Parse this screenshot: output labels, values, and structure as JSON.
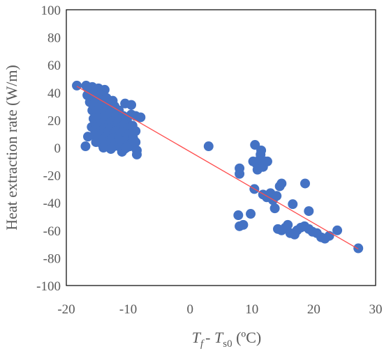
{
  "chart_data": {
    "type": "scatter",
    "xlabel": "Tf - Ts0 (ºC)",
    "xlabel_parts": {
      "t1": "T",
      "s1": "f",
      "mid": "- ",
      "t2": "T",
      "s2": "s0",
      "tail": " (ºC)"
    },
    "ylabel": "Heat extraction rate (W/m)",
    "xlim": [
      -20,
      30
    ],
    "ylim": [
      -100,
      100
    ],
    "xticks": [
      -20,
      -10,
      0,
      10,
      20,
      30
    ],
    "xtick_labels": [
      "-20",
      "-10",
      "0",
      "10",
      "20",
      "30"
    ],
    "yticks": [
      100,
      80,
      60,
      40,
      20,
      0,
      -20,
      -40,
      -60,
      -80,
      -100
    ],
    "ytick_labels": [
      "100",
      "80",
      "60",
      "40",
      "20",
      "0",
      "-20",
      "-40",
      "-60",
      "-80",
      "-100"
    ],
    "grid": false,
    "marker_color": "#4472C4",
    "trendline_color": "#FF4D4D",
    "trendline": [
      [
        -18.3,
        44.5
      ],
      [
        27.2,
        -73.5
      ]
    ],
    "points": [
      [
        -18.3,
        45
      ],
      [
        -16.8,
        45
      ],
      [
        -16.5,
        43
      ],
      [
        -15.8,
        44
      ],
      [
        -15.2,
        42
      ],
      [
        -14.8,
        43
      ],
      [
        -14.2,
        41
      ],
      [
        -13.8,
        42
      ],
      [
        -16.6,
        38
      ],
      [
        -16.0,
        36
      ],
      [
        -15.5,
        39
      ],
      [
        -15.0,
        37
      ],
      [
        -14.5,
        38
      ],
      [
        -14.0,
        35
      ],
      [
        -13.5,
        36
      ],
      [
        -12.5,
        34
      ],
      [
        -16.2,
        33
      ],
      [
        -15.7,
        31
      ],
      [
        -15.2,
        33
      ],
      [
        -14.7,
        30
      ],
      [
        -14.2,
        32
      ],
      [
        -13.7,
        29
      ],
      [
        -13.2,
        31
      ],
      [
        -12.7,
        28
      ],
      [
        -12.2,
        30
      ],
      [
        -11.5,
        27
      ],
      [
        -10.5,
        32
      ],
      [
        -9.5,
        31
      ],
      [
        -15.8,
        27
      ],
      [
        -15.3,
        25
      ],
      [
        -14.8,
        27
      ],
      [
        -14.3,
        24
      ],
      [
        -13.8,
        26
      ],
      [
        -13.3,
        23
      ],
      [
        -12.8,
        25
      ],
      [
        -12.3,
        22
      ],
      [
        -11.8,
        24
      ],
      [
        -11.3,
        21
      ],
      [
        -10.8,
        23
      ],
      [
        -10.2,
        20
      ],
      [
        -9.5,
        24
      ],
      [
        -8.8,
        23
      ],
      [
        -8.0,
        22
      ],
      [
        -15.6,
        21
      ],
      [
        -15.1,
        19
      ],
      [
        -14.6,
        21
      ],
      [
        -14.1,
        18
      ],
      [
        -13.6,
        20
      ],
      [
        -13.1,
        17
      ],
      [
        -12.6,
        19
      ],
      [
        -12.1,
        16
      ],
      [
        -11.6,
        18
      ],
      [
        -11.1,
        15
      ],
      [
        -10.6,
        17
      ],
      [
        -10.0,
        14
      ],
      [
        -9.3,
        16
      ],
      [
        -8.8,
        12
      ],
      [
        -15.9,
        15
      ],
      [
        -15.4,
        13
      ],
      [
        -14.9,
        15
      ],
      [
        -14.4,
        12
      ],
      [
        -13.9,
        14
      ],
      [
        -13.4,
        11
      ],
      [
        -12.9,
        13
      ],
      [
        -12.4,
        10
      ],
      [
        -11.9,
        12
      ],
      [
        -11.4,
        9
      ],
      [
        -10.9,
        11
      ],
      [
        -10.4,
        8
      ],
      [
        -9.8,
        10
      ],
      [
        -9.2,
        7
      ],
      [
        -16.5,
        8
      ],
      [
        -15.5,
        9
      ],
      [
        -15.0,
        7
      ],
      [
        -14.5,
        9
      ],
      [
        -14.0,
        6
      ],
      [
        -13.5,
        8
      ],
      [
        -13.0,
        5
      ],
      [
        -12.5,
        7
      ],
      [
        -12.0,
        4
      ],
      [
        -11.5,
        6
      ],
      [
        -11.0,
        3
      ],
      [
        -10.5,
        5
      ],
      [
        -10.0,
        2
      ],
      [
        -9.5,
        3
      ],
      [
        -15.2,
        4
      ],
      [
        -14.3,
        3
      ],
      [
        -13.2,
        2
      ],
      [
        -12.3,
        1
      ],
      [
        -11.2,
        0
      ],
      [
        -10.6,
        -1
      ],
      [
        -9.7,
        1
      ],
      [
        -8.8,
        4
      ],
      [
        -8.6,
        -2
      ],
      [
        -8.6,
        -5
      ],
      [
        -16.9,
        1
      ],
      [
        -14.0,
        0
      ],
      [
        -12.8,
        -1
      ],
      [
        -11.0,
        -3
      ],
      [
        -10.3,
        0
      ],
      [
        3.0,
        1
      ],
      [
        8.0,
        -15
      ],
      [
        8.0,
        -19
      ],
      [
        7.8,
        -49
      ],
      [
        8.0,
        -57
      ],
      [
        8.6,
        -56
      ],
      [
        9.8,
        -48
      ],
      [
        10.5,
        2
      ],
      [
        10.2,
        -10
      ],
      [
        10.8,
        -12
      ],
      [
        11.2,
        -9
      ],
      [
        11.5,
        -2
      ],
      [
        11.4,
        -5
      ],
      [
        11.8,
        -14
      ],
      [
        12.2,
        -10
      ],
      [
        12.5,
        -10
      ],
      [
        10.9,
        -16
      ],
      [
        10.4,
        -30
      ],
      [
        11.8,
        -34
      ],
      [
        12.4,
        -36
      ],
      [
        13.0,
        -33
      ],
      [
        13.4,
        -38
      ],
      [
        14.0,
        -35
      ],
      [
        13.7,
        -44
      ],
      [
        14.5,
        -28
      ],
      [
        14.8,
        -26
      ],
      [
        14.2,
        -59
      ],
      [
        14.8,
        -60
      ],
      [
        15.4,
        -58
      ],
      [
        15.8,
        -56
      ],
      [
        16.2,
        -62
      ],
      [
        16.9,
        -63
      ],
      [
        17.3,
        -60
      ],
      [
        17.9,
        -58
      ],
      [
        18.5,
        -57
      ],
      [
        19.2,
        -59
      ],
      [
        19.8,
        -61
      ],
      [
        20.5,
        -62
      ],
      [
        21.2,
        -65
      ],
      [
        21.8,
        -66
      ],
      [
        22.5,
        -64
      ],
      [
        23.8,
        -60
      ],
      [
        16.6,
        -41
      ],
      [
        18.6,
        -26
      ],
      [
        19.2,
        -46
      ],
      [
        27.2,
        -73
      ]
    ]
  }
}
